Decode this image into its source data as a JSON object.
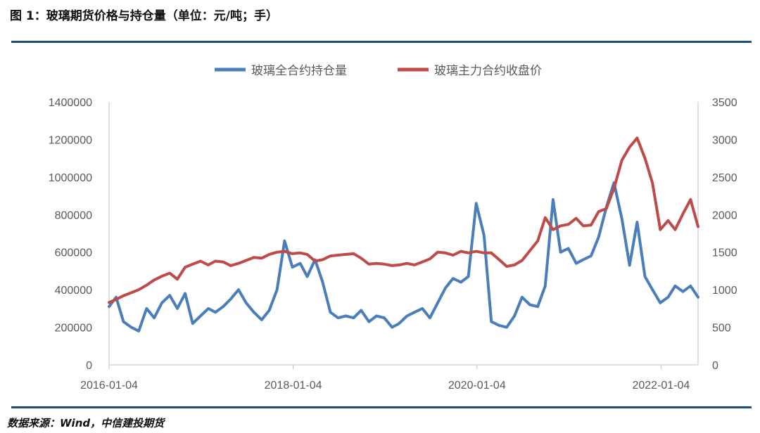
{
  "header": {
    "title": "图 1：玻璃期货价格与持仓量（单位：元/吨；手）"
  },
  "footer": {
    "source": "数据来源：Wind，中信建投期货"
  },
  "colors": {
    "open_interest": "#4a7ebb",
    "close_price": "#be4b48",
    "rule": "#1f4e79",
    "axis": "#bfbfbf",
    "text": "#595959"
  },
  "chart_data": {
    "type": "line",
    "title": "",
    "legend": {
      "position": "top"
    },
    "grid": false,
    "x_axis": {
      "tick_labels": [
        "2016-01-04",
        "2018-01-04",
        "2020-01-04",
        "2022-01-04"
      ],
      "range": [
        "2016-01-04",
        "2022-05-31"
      ]
    },
    "y_axis_left": {
      "range": [
        0,
        1400000
      ],
      "tick_labels": [
        "0",
        "200000",
        "400000",
        "600000",
        "800000",
        "1000000",
        "1200000",
        "1400000"
      ]
    },
    "y_axis_right": {
      "range": [
        0,
        3500
      ],
      "tick_labels": [
        "0",
        "500",
        "1000",
        "1500",
        "2000",
        "2500",
        "3000",
        "3500"
      ]
    },
    "series": [
      {
        "name": "玻璃全合约持仓量",
        "axis": "left",
        "x": [
          "2016-01-04",
          "2016-02-01",
          "2016-03-01",
          "2016-04-01",
          "2016-05-01",
          "2016-06-01",
          "2016-07-01",
          "2016-08-01",
          "2016-09-01",
          "2016-10-01",
          "2016-11-01",
          "2016-12-01",
          "2017-01-01",
          "2017-02-01",
          "2017-03-01",
          "2017-04-01",
          "2017-05-01",
          "2017-06-01",
          "2017-07-01",
          "2017-08-01",
          "2017-09-01",
          "2017-10-01",
          "2017-11-01",
          "2017-12-01",
          "2018-01-01",
          "2018-02-01",
          "2018-03-01",
          "2018-04-01",
          "2018-05-01",
          "2018-06-01",
          "2018-07-01",
          "2018-08-01",
          "2018-09-01",
          "2018-10-01",
          "2018-11-01",
          "2018-12-01",
          "2019-01-01",
          "2019-02-01",
          "2019-03-01",
          "2019-04-01",
          "2019-05-01",
          "2019-06-01",
          "2019-07-01",
          "2019-08-01",
          "2019-09-01",
          "2019-10-01",
          "2019-11-01",
          "2019-12-01",
          "2020-01-01",
          "2020-02-01",
          "2020-03-01",
          "2020-04-01",
          "2020-05-01",
          "2020-06-01",
          "2020-07-01",
          "2020-08-01",
          "2020-09-01",
          "2020-10-01",
          "2020-11-01",
          "2020-12-01",
          "2021-01-01",
          "2021-02-01",
          "2021-03-01",
          "2021-04-01",
          "2021-05-01",
          "2021-06-01",
          "2021-07-01",
          "2021-08-01",
          "2021-09-01",
          "2021-10-01",
          "2021-11-01",
          "2021-12-01",
          "2022-01-01",
          "2022-02-01",
          "2022-03-01",
          "2022-04-01",
          "2022-05-01",
          "2022-05-31"
        ],
        "values": [
          310000,
          360000,
          230000,
          200000,
          180000,
          300000,
          250000,
          330000,
          370000,
          300000,
          380000,
          220000,
          260000,
          300000,
          280000,
          310000,
          350000,
          400000,
          330000,
          280000,
          240000,
          290000,
          400000,
          660000,
          520000,
          540000,
          470000,
          560000,
          440000,
          280000,
          250000,
          260000,
          250000,
          290000,
          230000,
          260000,
          250000,
          200000,
          220000,
          260000,
          280000,
          300000,
          250000,
          330000,
          410000,
          460000,
          440000,
          470000,
          860000,
          690000,
          230000,
          210000,
          200000,
          260000,
          360000,
          320000,
          310000,
          420000,
          880000,
          600000,
          620000,
          540000,
          560000,
          580000,
          680000,
          840000,
          970000,
          780000,
          530000,
          760000,
          470000,
          400000,
          330000,
          360000,
          420000,
          390000,
          420000,
          360000
        ]
      },
      {
        "name": "玻璃主力合约收盘价",
        "axis": "right",
        "x": [
          "2016-01-04",
          "2016-02-01",
          "2016-03-01",
          "2016-04-01",
          "2016-05-01",
          "2016-06-01",
          "2016-07-01",
          "2016-08-01",
          "2016-09-01",
          "2016-10-01",
          "2016-11-01",
          "2016-12-01",
          "2017-01-01",
          "2017-02-01",
          "2017-03-01",
          "2017-04-01",
          "2017-05-01",
          "2017-06-01",
          "2017-07-01",
          "2017-08-01",
          "2017-09-01",
          "2017-10-01",
          "2017-11-01",
          "2017-12-01",
          "2018-01-01",
          "2018-02-01",
          "2018-03-01",
          "2018-04-01",
          "2018-05-01",
          "2018-06-01",
          "2018-07-01",
          "2018-08-01",
          "2018-09-01",
          "2018-10-01",
          "2018-11-01",
          "2018-12-01",
          "2019-01-01",
          "2019-02-01",
          "2019-03-01",
          "2019-04-01",
          "2019-05-01",
          "2019-06-01",
          "2019-07-01",
          "2019-08-01",
          "2019-09-01",
          "2019-10-01",
          "2019-11-01",
          "2019-12-01",
          "2020-01-01",
          "2020-02-01",
          "2020-03-01",
          "2020-04-01",
          "2020-05-01",
          "2020-06-01",
          "2020-07-01",
          "2020-08-01",
          "2020-09-01",
          "2020-10-01",
          "2020-11-01",
          "2020-12-01",
          "2021-01-01",
          "2021-02-01",
          "2021-03-01",
          "2021-04-01",
          "2021-05-01",
          "2021-06-01",
          "2021-07-01",
          "2021-08-01",
          "2021-09-01",
          "2021-10-01",
          "2021-11-01",
          "2021-12-01",
          "2022-01-01",
          "2022-02-01",
          "2022-03-01",
          "2022-04-01",
          "2022-05-01",
          "2022-05-31"
        ],
        "values": [
          830,
          870,
          920,
          960,
          1000,
          1060,
          1130,
          1180,
          1220,
          1140,
          1300,
          1340,
          1380,
          1330,
          1380,
          1370,
          1320,
          1350,
          1390,
          1430,
          1420,
          1470,
          1500,
          1510,
          1480,
          1490,
          1470,
          1380,
          1400,
          1450,
          1460,
          1470,
          1480,
          1420,
          1340,
          1350,
          1340,
          1320,
          1330,
          1350,
          1330,
          1370,
          1410,
          1500,
          1490,
          1460,
          1510,
          1490,
          1510,
          1490,
          1490,
          1400,
          1310,
          1330,
          1390,
          1520,
          1650,
          1960,
          1800,
          1850,
          1870,
          1950,
          1850,
          1860,
          2040,
          2080,
          2350,
          2720,
          2900,
          3020,
          2750,
          2420,
          1800,
          1920,
          1800,
          2010,
          2200,
          1840
        ]
      }
    ]
  }
}
